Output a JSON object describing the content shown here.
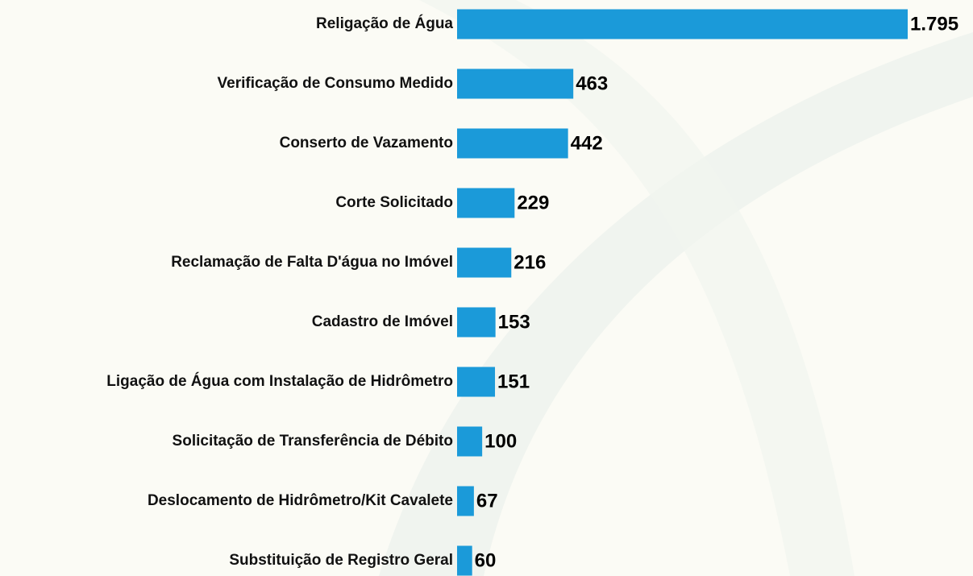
{
  "chart_data": {
    "type": "bar",
    "orientation": "horizontal",
    "categories": [
      "Religação de Água",
      "Verificação de Consumo Medido",
      "Conserto de Vazamento",
      "Corte Solicitado",
      "Reclamação de Falta D'água no Imóvel",
      "Cadastro de Imóvel",
      "Ligação de Água com Instalação de Hidrômetro",
      "Solicitação de Transferência de Débito",
      "Deslocamento de Hidrômetro/Kit Cavalete",
      "Substituição de Registro Geral"
    ],
    "values": [
      1795,
      463,
      442,
      229,
      216,
      153,
      151,
      100,
      67,
      60
    ],
    "value_labels": [
      "1.795",
      "463",
      "442",
      "229",
      "216",
      "153",
      "151",
      "100",
      "67",
      "60"
    ],
    "color": "#1b9ad9"
  }
}
